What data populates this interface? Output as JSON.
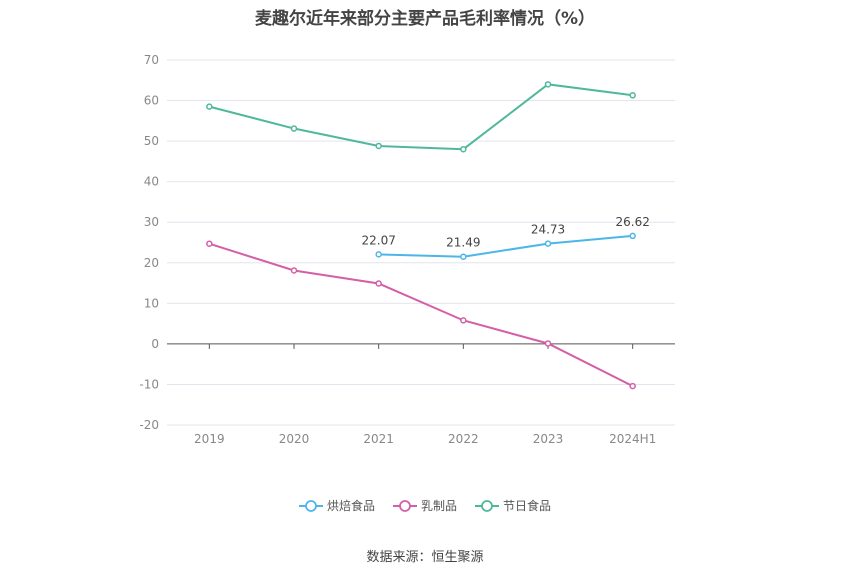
{
  "title": "麦趣尔近年来部分主要产品毛利率情况（%）",
  "source": "数据来源：恒生聚源",
  "chart_data": {
    "type": "line",
    "title": "麦趣尔近年来部分主要产品毛利率情况（%）",
    "xlabel": "",
    "ylabel": "",
    "categories": [
      "2019",
      "2020",
      "2021",
      "2022",
      "2023",
      "2024H1"
    ],
    "ylim": [
      -20,
      70
    ],
    "yticks": [
      70,
      60,
      50,
      40,
      30,
      20,
      10,
      0,
      -10,
      -20
    ],
    "grid": true,
    "legend_position": "bottom",
    "series": [
      {
        "name": "烘焙食品",
        "color": "#4db6e8",
        "values": [
          null,
          null,
          22.07,
          21.49,
          24.73,
          26.62
        ],
        "labels": true
      },
      {
        "name": "乳制品",
        "color": "#d45fa8",
        "values": [
          24.7,
          18.1,
          14.9,
          5.8,
          0.1,
          -10.4
        ],
        "labels": false
      },
      {
        "name": "节日食品",
        "color": "#4fb89b",
        "values": [
          58.5,
          53.1,
          48.8,
          48.0,
          64.0,
          61.3
        ],
        "labels": false
      }
    ]
  }
}
